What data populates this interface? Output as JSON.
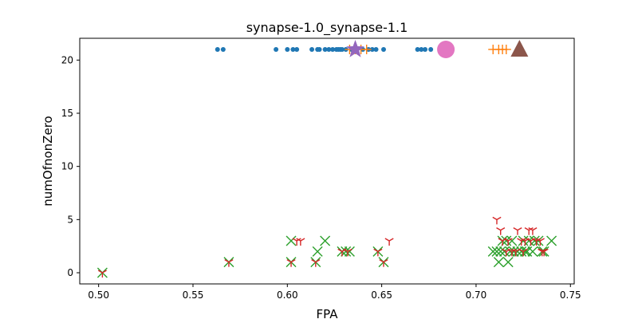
{
  "chart_data": {
    "type": "scatter",
    "title": "synapse-1.0_synapse-1.1",
    "xlabel": "FPA",
    "ylabel": "numOfnonZero",
    "xlim": [
      0.49,
      0.752
    ],
    "ylim": [
      -1.05,
      22.05
    ],
    "grid": false,
    "legend": "none",
    "xticks": [
      0.5,
      0.55,
      0.6,
      0.65,
      0.7,
      0.75
    ],
    "xtick_labels": [
      "0.50",
      "0.55",
      "0.60",
      "0.65",
      "0.70",
      "0.75"
    ],
    "yticks": [
      0,
      5,
      10,
      15,
      20
    ],
    "ytick_labels": [
      "0",
      "5",
      "10",
      "15",
      "20"
    ],
    "series": [
      {
        "marker": "circle-small",
        "color": "#1f77b4",
        "points": [
          [
            0.563,
            21
          ],
          [
            0.566,
            21
          ],
          [
            0.594,
            21
          ],
          [
            0.6,
            21
          ],
          [
            0.603,
            21
          ],
          [
            0.605,
            21
          ],
          [
            0.613,
            21
          ],
          [
            0.616,
            21
          ],
          [
            0.617,
            21
          ],
          [
            0.62,
            21
          ],
          [
            0.622,
            21
          ],
          [
            0.624,
            21
          ],
          [
            0.626,
            21
          ],
          [
            0.627,
            21
          ],
          [
            0.628,
            21
          ],
          [
            0.629,
            21
          ],
          [
            0.631,
            21
          ],
          [
            0.634,
            21
          ],
          [
            0.636,
            21
          ],
          [
            0.64,
            21
          ],
          [
            0.643,
            21
          ],
          [
            0.645,
            21
          ],
          [
            0.647,
            21
          ],
          [
            0.651,
            21
          ],
          [
            0.669,
            21
          ],
          [
            0.671,
            21
          ],
          [
            0.673,
            21
          ],
          [
            0.676,
            21
          ],
          [
            0.681,
            21
          ]
        ]
      },
      {
        "marker": "plus",
        "color": "#ff7f0e",
        "points": [
          [
            0.633,
            21
          ],
          [
            0.636,
            21
          ],
          [
            0.639,
            21
          ],
          [
            0.642,
            21
          ],
          [
            0.709,
            21
          ],
          [
            0.712,
            21
          ],
          [
            0.714,
            21
          ],
          [
            0.716,
            21
          ]
        ]
      },
      {
        "marker": "x",
        "color": "#2ca02c",
        "points": [
          [
            0.502,
            0
          ],
          [
            0.569,
            1
          ],
          [
            0.602,
            1
          ],
          [
            0.602,
            3
          ],
          [
            0.615,
            1
          ],
          [
            0.616,
            2
          ],
          [
            0.62,
            3
          ],
          [
            0.629,
            2
          ],
          [
            0.631,
            2
          ],
          [
            0.633,
            2
          ],
          [
            0.648,
            2
          ],
          [
            0.651,
            1
          ],
          [
            0.709,
            2
          ],
          [
            0.711,
            2
          ],
          [
            0.712,
            1
          ],
          [
            0.713,
            2
          ],
          [
            0.714,
            3
          ],
          [
            0.715,
            2
          ],
          [
            0.716,
            3
          ],
          [
            0.717,
            1
          ],
          [
            0.718,
            2
          ],
          [
            0.719,
            3
          ],
          [
            0.72,
            2
          ],
          [
            0.722,
            2
          ],
          [
            0.724,
            2
          ],
          [
            0.725,
            3
          ],
          [
            0.726,
            2
          ],
          [
            0.727,
            2
          ],
          [
            0.728,
            3
          ],
          [
            0.73,
            2
          ],
          [
            0.731,
            3
          ],
          [
            0.733,
            3
          ],
          [
            0.735,
            2
          ],
          [
            0.736,
            2
          ],
          [
            0.74,
            3
          ]
        ]
      },
      {
        "marker": "tri-down",
        "color": "#d62728",
        "points": [
          [
            0.502,
            0
          ],
          [
            0.569,
            1
          ],
          [
            0.602,
            1
          ],
          [
            0.605,
            3
          ],
          [
            0.607,
            3
          ],
          [
            0.615,
            1
          ],
          [
            0.629,
            2
          ],
          [
            0.632,
            2
          ],
          [
            0.648,
            2
          ],
          [
            0.651,
            1
          ],
          [
            0.654,
            3
          ],
          [
            0.711,
            5
          ],
          [
            0.713,
            4
          ],
          [
            0.714,
            3
          ],
          [
            0.716,
            2
          ],
          [
            0.717,
            3
          ],
          [
            0.719,
            2
          ],
          [
            0.721,
            2
          ],
          [
            0.722,
            4
          ],
          [
            0.724,
            3
          ],
          [
            0.725,
            2
          ],
          [
            0.726,
            3
          ],
          [
            0.728,
            4
          ],
          [
            0.729,
            3
          ],
          [
            0.73,
            4
          ],
          [
            0.732,
            3
          ],
          [
            0.734,
            3
          ],
          [
            0.735,
            2
          ],
          [
            0.736,
            2
          ]
        ]
      },
      {
        "marker": "star",
        "color": "#9467bd",
        "points": [
          [
            0.636,
            21
          ]
        ]
      },
      {
        "marker": "circle-large",
        "color": "#e377c2",
        "points": [
          [
            0.684,
            21
          ]
        ]
      },
      {
        "marker": "triangle-up",
        "color": "#8c564b",
        "points": [
          [
            0.723,
            21
          ]
        ]
      }
    ]
  }
}
